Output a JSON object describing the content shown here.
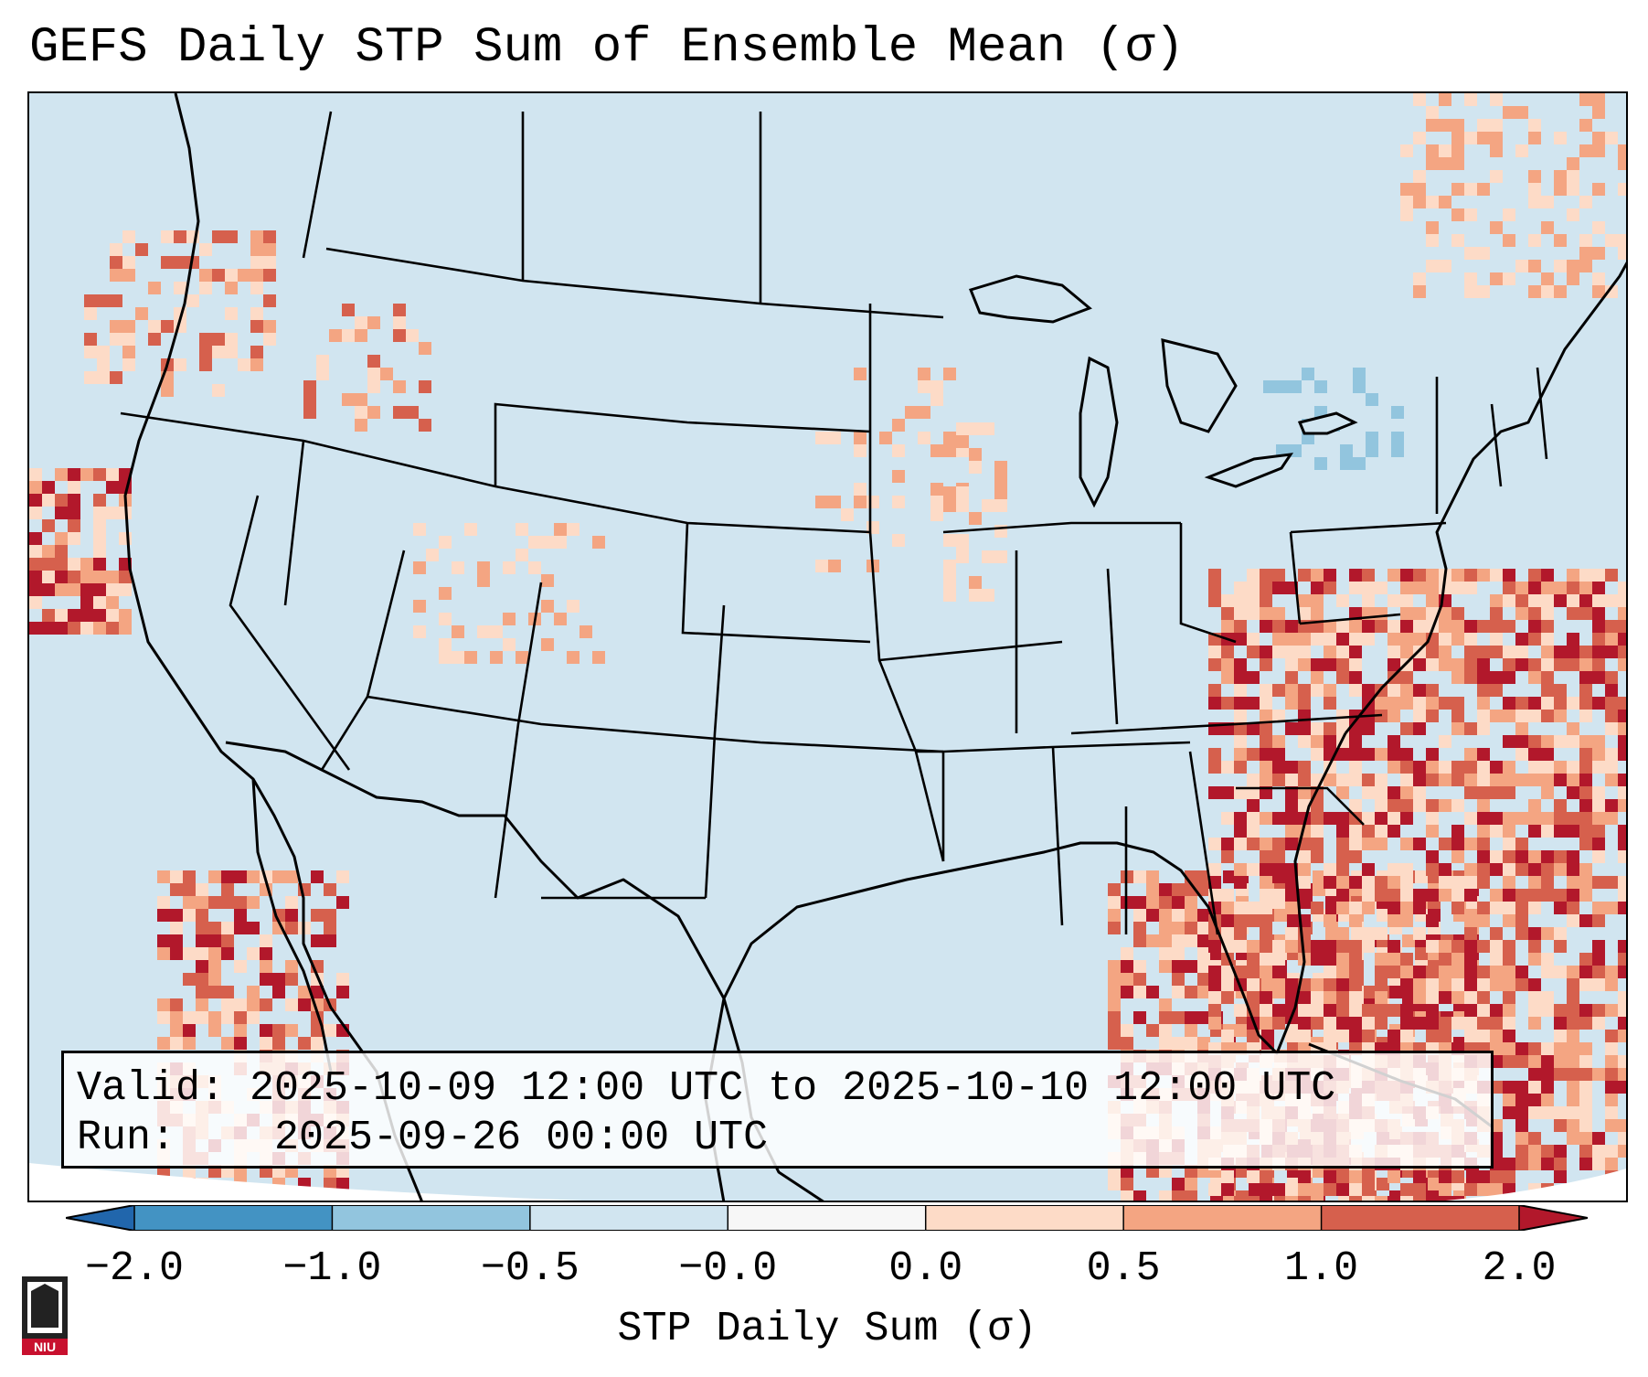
{
  "title": "GEFS Daily STP Sum of Ensemble Mean (σ)",
  "info": {
    "valid": "Valid: 2025-10-09 12:00 UTC to 2025-10-10 12:00 UTC",
    "run": "Run:    2025-09-26 00:00 UTC"
  },
  "colorbar": {
    "label": "STP Daily Sum (σ)",
    "ticks": [
      "−2.0",
      "−1.0",
      "−0.5",
      "−0.0",
      "0.0",
      "0.5",
      "1.0",
      "2.0"
    ],
    "colors": [
      "#4393c3",
      "#92c5de",
      "#d1e5f0",
      "#f7f7f7",
      "#fddbc7",
      "#f4a582",
      "#d6604d"
    ],
    "under_color": "#2166ac",
    "over_color": "#b2182b"
  },
  "map": {
    "background_color": "#d1e5f0",
    "land_outline_color": "#000000"
  },
  "logo": {
    "text": "NIU",
    "color": "#c8102e"
  }
}
